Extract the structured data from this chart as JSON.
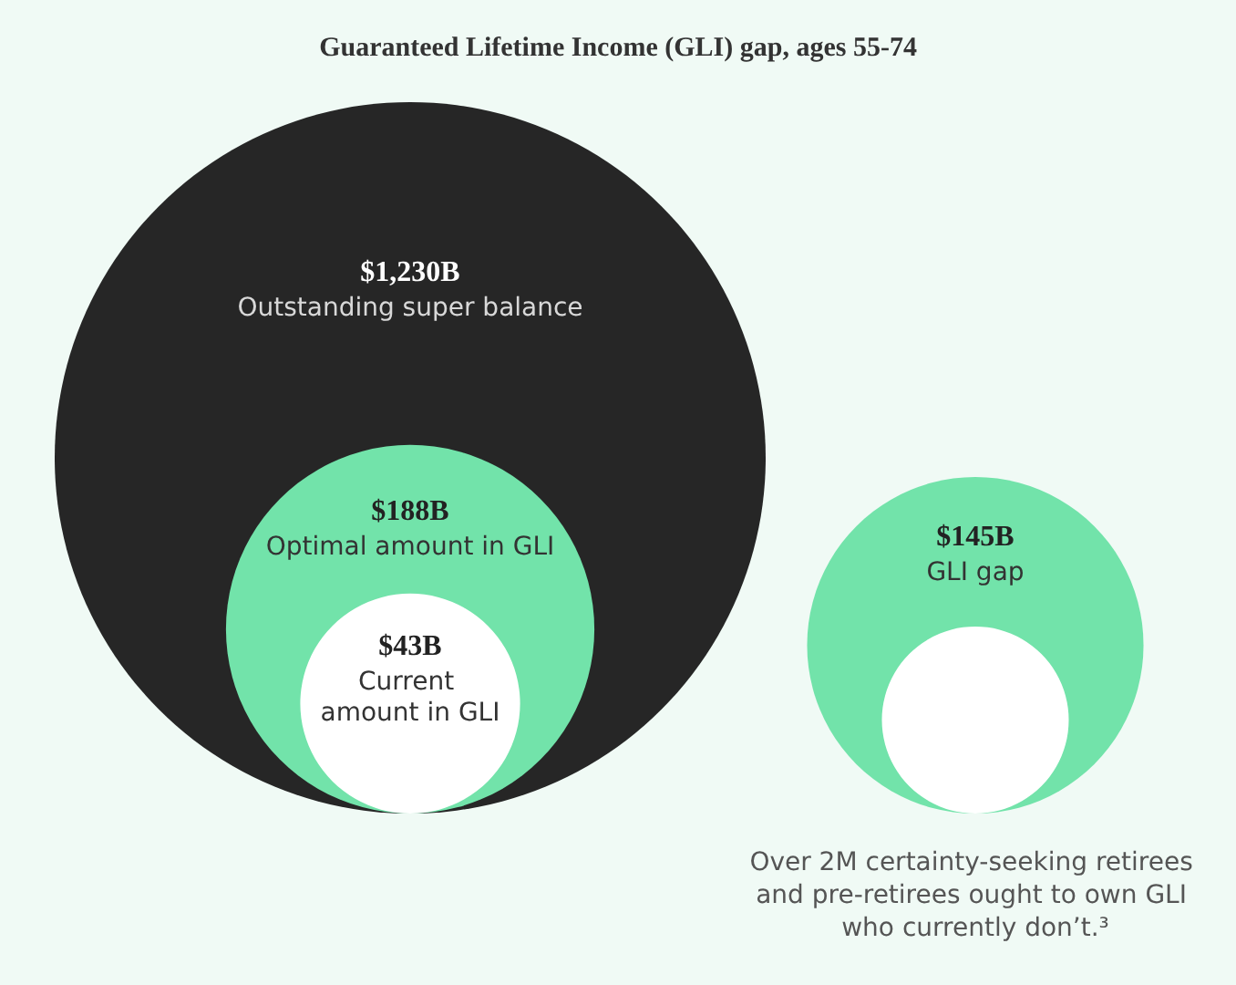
{
  "chart_data": {
    "type": "other",
    "title": "Guaranteed Lifetime Income (GLI) gap, ages 55-74",
    "categories": [
      "Outstanding super balance",
      "Optimal amount in GLI",
      "Current amount in GLI",
      "GLI gap",
      null
    ],
    "values": [
      1230,
      188,
      43,
      145,
      null
    ],
    "value_labels": [
      "$1,230B",
      "$188B",
      "$43B",
      "$145B",
      null
    ],
    "colors": [
      "#262626",
      "#72e3aa",
      "#ffffff",
      "#72e3aa",
      "#ffffff"
    ],
    "annotations": [
      "Over 2M certainty-seeking retirees and pre-retirees ought to own GLI who currently don’t.³"
    ]
  }
}
